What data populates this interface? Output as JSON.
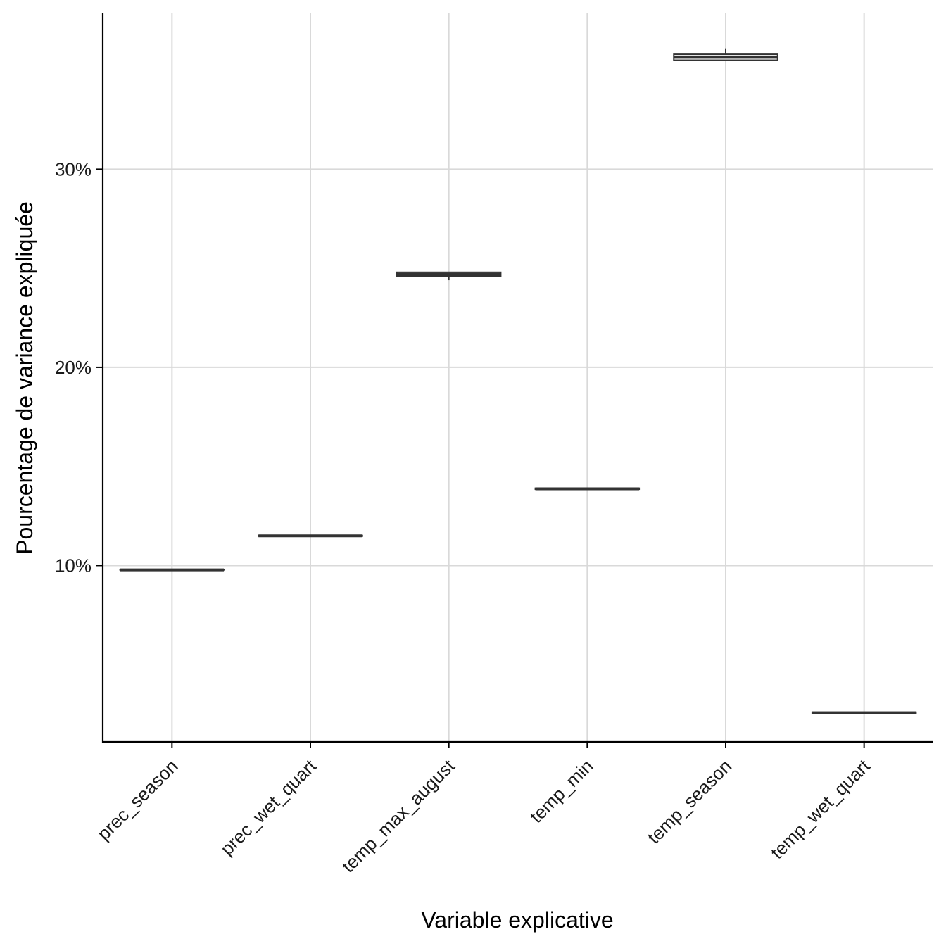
{
  "chart_data": {
    "type": "boxplot",
    "xlabel": "Variable explicative",
    "ylabel": "Pourcentage de variance expliquée",
    "categories": [
      "prec_season",
      "prec_wet_quart",
      "temp_max_august",
      "temp_min",
      "temp_season",
      "temp_wet_quart"
    ],
    "boxes": [
      {
        "category": "prec_season",
        "min": 9.78,
        "q1": 9.78,
        "median": 9.78,
        "q3": 9.8,
        "max": 9.8
      },
      {
        "category": "prec_wet_quart",
        "min": 11.48,
        "q1": 11.48,
        "median": 11.5,
        "q3": 11.52,
        "max": 11.52
      },
      {
        "category": "temp_max_august",
        "min": 24.4,
        "q1": 24.6,
        "median": 24.7,
        "q3": 24.8,
        "max": 24.8
      },
      {
        "category": "temp_min",
        "min": 13.85,
        "q1": 13.85,
        "median": 13.87,
        "q3": 13.9,
        "max": 13.9
      },
      {
        "category": "temp_season",
        "min": 35.5,
        "q1": 35.5,
        "median": 35.65,
        "q3": 35.8,
        "max": 36.1
      },
      {
        "category": "temp_wet_quart",
        "min": 2.55,
        "q1": 2.55,
        "median": 2.57,
        "q3": 2.6,
        "max": 2.6
      }
    ],
    "yticks": [
      10,
      20,
      30
    ],
    "ytick_labels": [
      "10%",
      "20%",
      "30%"
    ],
    "ylim": [
      1.1,
      37.9
    ],
    "grid": true,
    "legend": "none",
    "colors": {
      "box_stroke": "#333333",
      "box_fill": "#ffffff",
      "grid": "#d9d9d9"
    }
  }
}
